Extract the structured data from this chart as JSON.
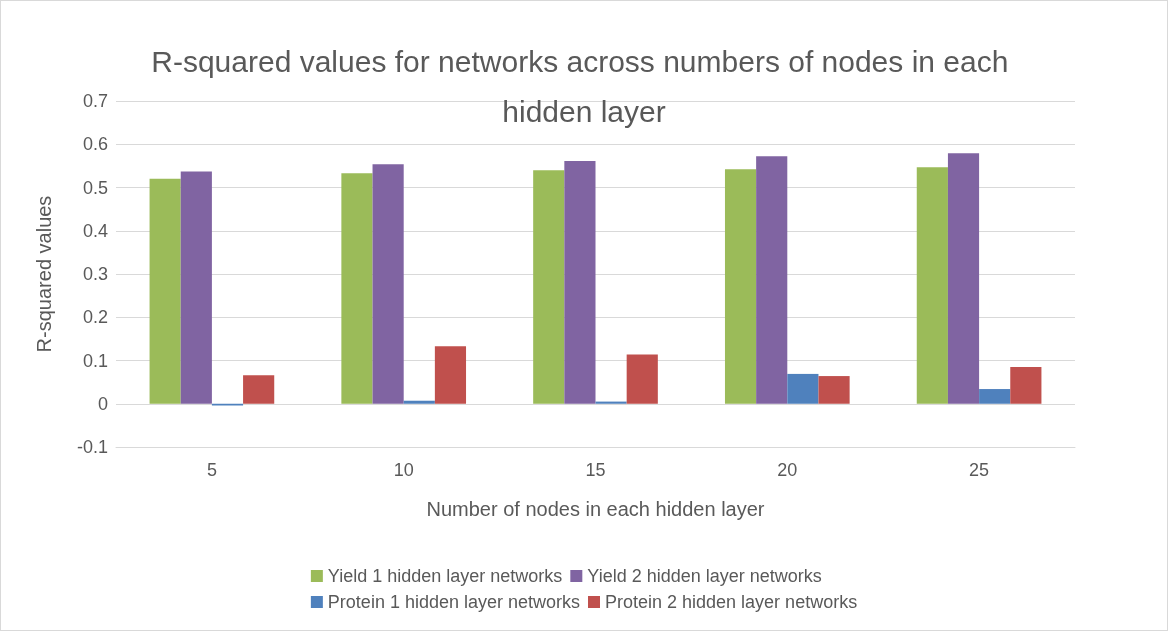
{
  "chart_data": {
    "type": "bar",
    "title": "R-squared values for networks across numbers of nodes in each hidden layer",
    "xlabel": "Number of nodes in each hidden layer",
    "ylabel": "R-squared values",
    "categories": [
      "5",
      "10",
      "15",
      "20",
      "25"
    ],
    "series": [
      {
        "name": "Yield 1 hidden layer networks",
        "color": "#9bbb59",
        "values": [
          0.52,
          0.533,
          0.54,
          0.542,
          0.547
        ]
      },
      {
        "name": "Yield 2 hidden layer networks",
        "color": "#8064a2",
        "values": [
          0.537,
          0.554,
          0.561,
          0.572,
          0.579
        ]
      },
      {
        "name": "Protein 1 hidden layer networks",
        "color": "#4f81bd",
        "values": [
          -0.004,
          0.007,
          0.005,
          0.069,
          0.034
        ]
      },
      {
        "name": "Protein 2 hidden layer networks",
        "color": "#c0504d",
        "values": [
          0.066,
          0.133,
          0.114,
          0.064,
          0.085
        ]
      }
    ],
    "ylim": [
      -0.1,
      0.7
    ],
    "yticks": [
      -0.1,
      0,
      0.1,
      0.2,
      0.3,
      0.4,
      0.5,
      0.6,
      0.7
    ],
    "grid": "y",
    "legend": "bottom"
  }
}
